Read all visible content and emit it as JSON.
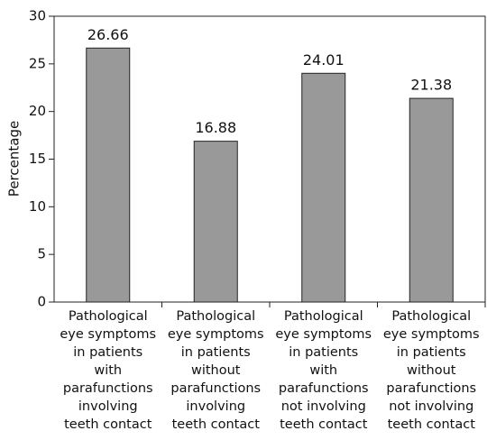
{
  "chart_data": {
    "type": "bar",
    "y_label": "Percentage",
    "categories": [
      "Pathological\neye symptoms\nin patients\nwith\nparafunctions\ninvolving\nteeth contact",
      "Pathological\neye symptoms\nin patients\nwithout\nparafunctions\ninvolving\nteeth contact",
      "Pathological\neye symptoms\nin patients\nwith\nparafunctions\nnot involving\nteeth contact",
      "Pathological\neye symptoms\nin patients\nwithout\nparafunctions\nnot involving\nteeth contact"
    ],
    "values": [
      26.66,
      16.88,
      24.01,
      21.38
    ],
    "color": "#999999",
    "ylim": [
      0,
      30
    ],
    "yticks": [
      0,
      5,
      10,
      15,
      20,
      25,
      30
    ],
    "grid": false
  }
}
